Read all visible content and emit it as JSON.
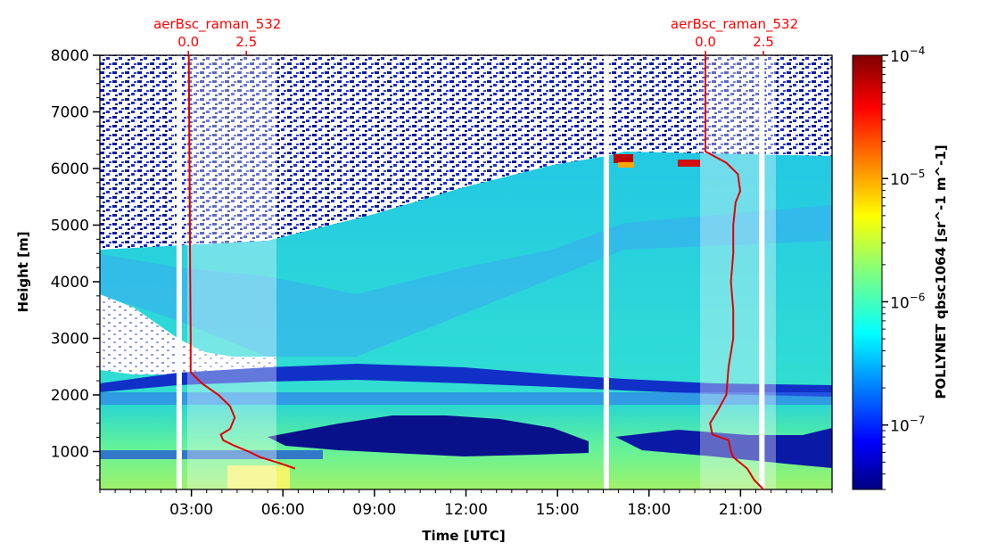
{
  "chart_data": {
    "type": "heatmap",
    "xlabel": "Time [UTC]",
    "ylabel": "Height [m]",
    "xlim": [
      0,
      24
    ],
    "ylim": [
      330,
      8000
    ],
    "x_ticks": [
      {
        "value": 3,
        "label": "03:00"
      },
      {
        "value": 6,
        "label": "06:00"
      },
      {
        "value": 9,
        "label": "09:00"
      },
      {
        "value": 12,
        "label": "12:00"
      },
      {
        "value": 15,
        "label": "15:00"
      },
      {
        "value": 18,
        "label": "18:00"
      },
      {
        "value": 21,
        "label": "21:00"
      }
    ],
    "y_ticks": [
      {
        "value": 1000,
        "label": "1000"
      },
      {
        "value": 2000,
        "label": "2000"
      },
      {
        "value": 3000,
        "label": "3000"
      },
      {
        "value": 4000,
        "label": "4000"
      },
      {
        "value": 5000,
        "label": "5000"
      },
      {
        "value": 6000,
        "label": "6000"
      },
      {
        "value": 7000,
        "label": "7000"
      },
      {
        "value": 8000,
        "label": "8000"
      }
    ],
    "colorbar": {
      "label": "POLLYNET qbsc1064 [sr^-1 m^-1]",
      "scale": "log",
      "range": [
        3e-08,
        0.0001
      ],
      "ticks": [
        {
          "exp": -4,
          "base": "10",
          "sup": "−4"
        },
        {
          "exp": -5,
          "base": "10",
          "sup": "−5"
        },
        {
          "exp": -6,
          "base": "10",
          "sup": "−6"
        },
        {
          "exp": -7,
          "base": "10",
          "sup": "−7"
        }
      ],
      "colormap": "jet"
    },
    "data_gaps_utc": [
      2.6,
      16.6,
      21.7
    ],
    "bands": [
      {
        "name": "cloud_top",
        "height_m_start": [
          2400,
          4600
        ],
        "height_m_end": [
          6200,
          6200
        ]
      },
      {
        "name": "dark_layer",
        "x": [
          8.0,
          14.0
        ],
        "y": [
          1000,
          1600
        ]
      }
    ],
    "profiles": [
      {
        "name": "aerBsc_raman_532",
        "color": "#e00000",
        "x_axis_ticks": [
          {
            "value": 0.0,
            "label": "0.0"
          },
          {
            "value": 2.5,
            "label": "2.5"
          }
        ],
        "origin_utc": 2.9,
        "height_m": [
          8000,
          6000,
          4000,
          3000,
          2400,
          2200,
          2000,
          1800,
          1600,
          1400,
          1300,
          1200,
          1100,
          1000,
          900,
          800,
          700
        ],
        "values": [
          0.02,
          0.05,
          0.08,
          0.1,
          0.1,
          0.6,
          1.3,
          1.8,
          2.0,
          1.8,
          1.4,
          1.5,
          2.0,
          2.6,
          3.1,
          3.9,
          4.6
        ]
      },
      {
        "name": "aerBsc_raman_532",
        "color": "#e00000",
        "x_axis_ticks": [
          {
            "value": 0.0,
            "label": "0.0"
          },
          {
            "value": 2.5,
            "label": "2.5"
          }
        ],
        "origin_utc": 19.85,
        "height_m": [
          8000,
          6300,
          6100,
          5900,
          5600,
          5400,
          5000,
          4500,
          4000,
          3500,
          3000,
          2500,
          2000,
          1700,
          1500,
          1300,
          1200,
          1000,
          900,
          700,
          500,
          330
        ],
        "values": [
          0.0,
          0.0,
          0.9,
          1.4,
          1.5,
          1.3,
          1.2,
          1.2,
          1.1,
          1.2,
          1.2,
          1.0,
          0.9,
          0.5,
          0.2,
          0.3,
          1.0,
          1.1,
          1.2,
          1.8,
          2.1,
          2.5
        ]
      }
    ]
  }
}
